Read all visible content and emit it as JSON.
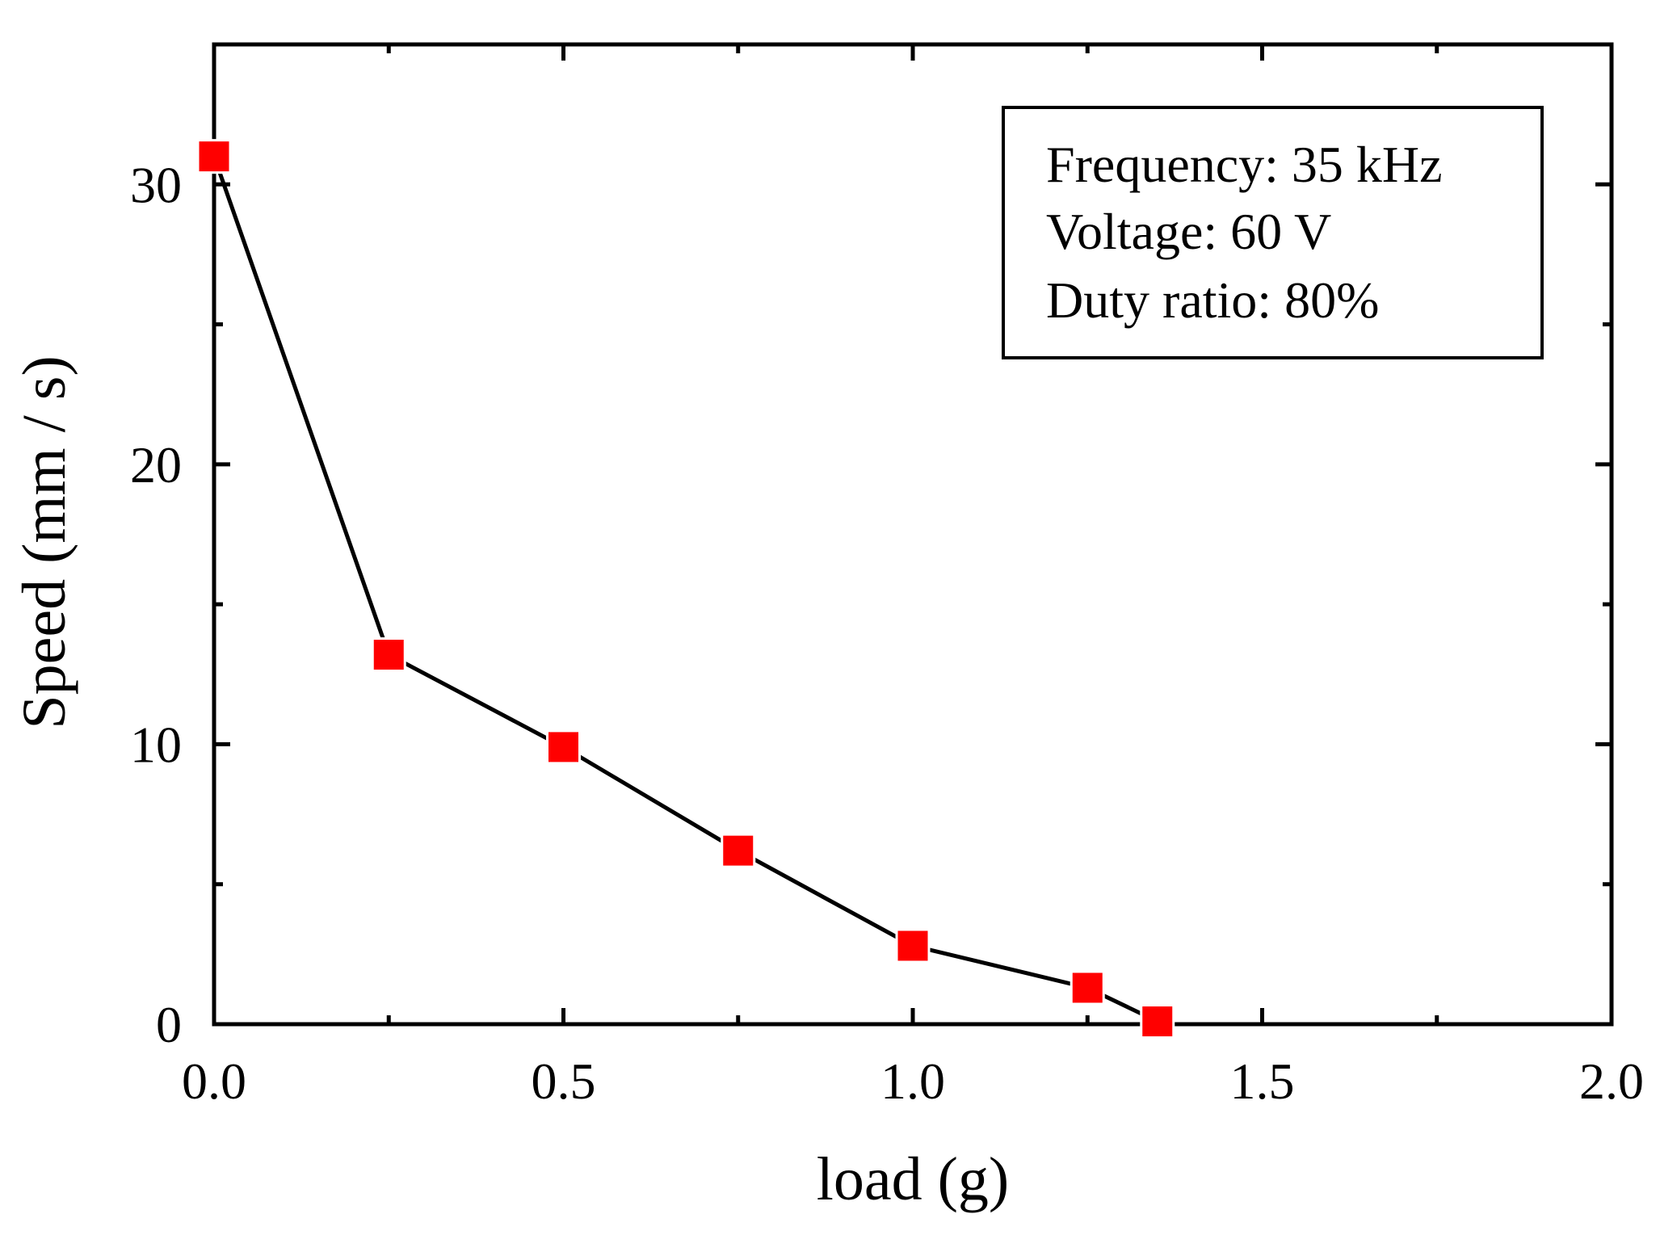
{
  "chart_data": {
    "type": "line",
    "title": "",
    "xlabel": "load (g)",
    "ylabel": "Speed (mm / s)",
    "xlim": [
      0.0,
      2.0
    ],
    "ylim": [
      0,
      35
    ],
    "x_ticks": [
      0.0,
      0.5,
      1.0,
      1.5,
      2.0
    ],
    "x_tick_labels": [
      "0.0",
      "0.5",
      "1.0",
      "1.5",
      "2.0"
    ],
    "x_minor_ticks": [
      0.25,
      0.75,
      1.25,
      1.75
    ],
    "y_ticks": [
      0,
      10,
      20,
      30
    ],
    "y_tick_labels": [
      "0",
      "10",
      "20",
      "30"
    ],
    "y_minor_ticks": [
      5,
      15,
      25
    ],
    "grid": false,
    "legend_position": "top-right",
    "annotation_lines": [
      "Frequency: 35 kHz",
      "Voltage: 60 V",
      "Duty ratio: 80%"
    ],
    "series": [
      {
        "name": "Speed",
        "color": "#ff0000",
        "line_color": "#000000",
        "marker": "square",
        "x": [
          0.0,
          0.25,
          0.5,
          0.75,
          1.0,
          1.25,
          1.35
        ],
        "y": [
          31.0,
          13.2,
          9.9,
          6.2,
          2.8,
          1.3,
          0.1
        ]
      }
    ]
  }
}
